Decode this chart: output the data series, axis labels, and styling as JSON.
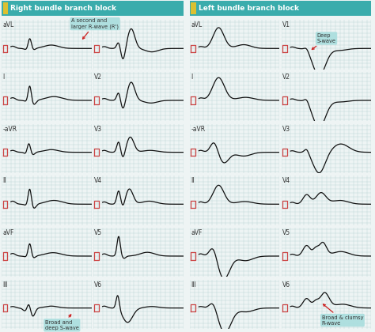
{
  "title_rbbb": "Right bundle branch block",
  "title_lbbb": "Left bundle branch block",
  "bg_color": "#eef4f4",
  "grid_color": "#c0d8d8",
  "header_color": "#3aacac",
  "lead_label_color": "#333333",
  "ecg_color": "#111111",
  "marker_color": "#cc2222",
  "annotation_bg": "#aadede",
  "annotation_text_color": "#333333",
  "leads_rbbb": [
    "aVL",
    "I",
    "-aVR",
    "II",
    "aVF",
    "III"
  ],
  "leads_lbbb": [
    "aVL",
    "I",
    "-aVR",
    "II",
    "aVF",
    "III"
  ],
  "leads_v_rbbb": [
    "V1",
    "V2",
    "V3",
    "V4",
    "V5",
    "V6"
  ],
  "leads_v_lbbb": [
    "V1",
    "V2",
    "V3",
    "V4",
    "V5",
    "V6"
  ],
  "ann_rbbb_v1_text": "A second and\nlarger R-wave (R')",
  "ann_rbbb_v6_text": "Broad and\ndeep S-wave",
  "ann_lbbb_v1_text": "Deep\nS-wave",
  "ann_lbbb_v6_text": "Broad & clumsy\nR-wave"
}
